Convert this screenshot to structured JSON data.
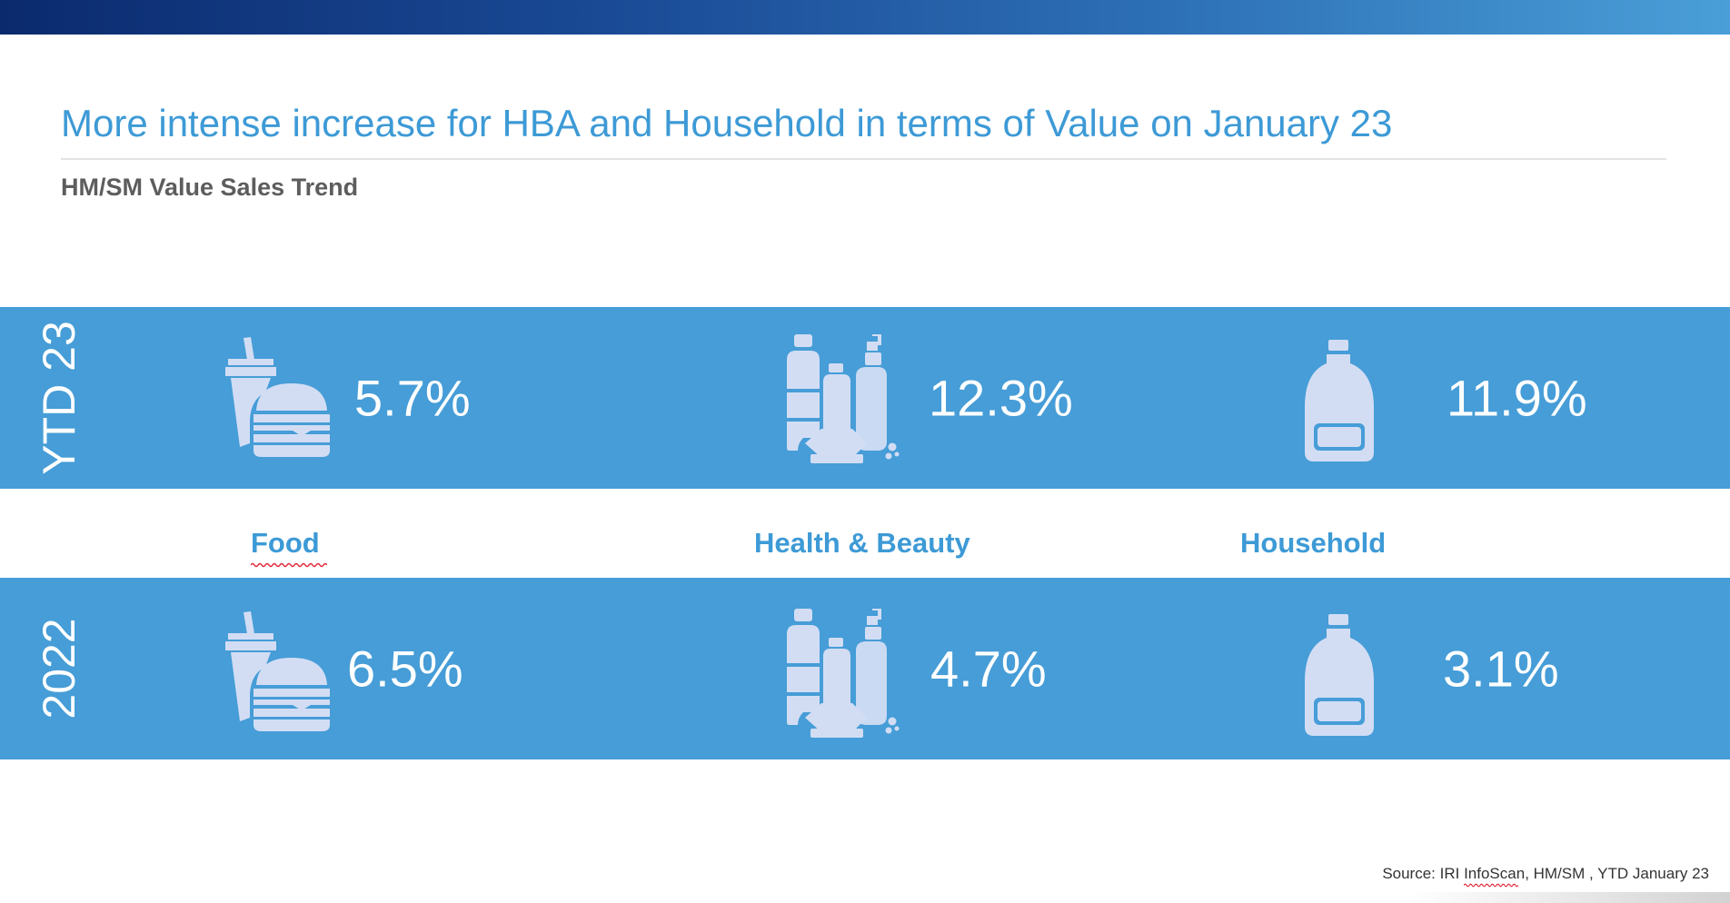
{
  "slide": {
    "title": "More intense increase for HBA and Household in terms of Value on January 23",
    "subtitle": "HM/SM Value Sales Trend",
    "source_prefix": "Source: IRI ",
    "source_brand": "InfoScan",
    "source_suffix": ", HM/SM , YTD January 23"
  },
  "colors": {
    "band": "#469dd7",
    "title": "#3d9ad6",
    "icon": "#d2ddf4",
    "top_bar_start": "#0b2a6e",
    "top_bar_end": "#4a9fd8"
  },
  "categories": [
    {
      "label": "Food",
      "icon": "fast-food-icon"
    },
    {
      "label": "Health & Beauty",
      "icon": "cosmetic-bottles-icon"
    },
    {
      "label": "Household",
      "icon": "detergent-bottle-icon"
    }
  ],
  "rows": [
    {
      "label": "YTD 23",
      "values": [
        "5.7%",
        "12.3%",
        "11.9%"
      ]
    },
    {
      "label": "2022",
      "values": [
        "6.5%",
        "4.7%",
        "3.1%"
      ]
    }
  ]
}
